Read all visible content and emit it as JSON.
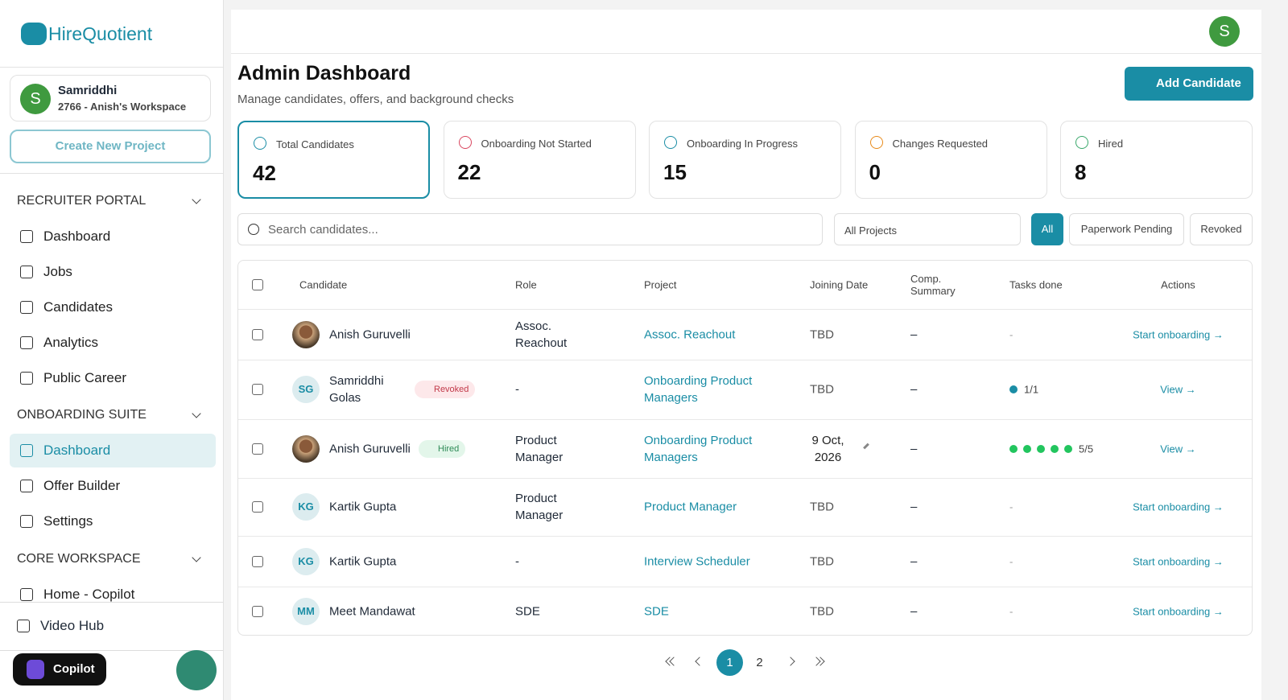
{
  "sidebar": {
    "logo": "HireQuotient",
    "user": {
      "initial": "S",
      "name": "Samriddhi",
      "workspace": "2766 - Anish's Workspace"
    },
    "create_button": "Create New Project",
    "sections": [
      {
        "title": "RECRUITER PORTAL",
        "items": [
          "Dashboard",
          "Jobs",
          "Candidates",
          "Analytics",
          "Public Career"
        ]
      },
      {
        "title": "ONBOARDING SUITE",
        "items": [
          "Dashboard",
          "Offer Builder",
          "Settings"
        ]
      },
      {
        "title": "CORE WORKSPACE",
        "items": [
          "Home - Copilot"
        ]
      }
    ],
    "footer_item": "Video Hub",
    "copilot": "Copilot"
  },
  "header": {
    "avatar": "S",
    "title": "Admin Dashboard",
    "subtitle": "Manage candidates, offers, and background checks",
    "add_button": "Add Candidate"
  },
  "stats": [
    {
      "label": "Total Candidates",
      "value": 42
    },
    {
      "label": "Onboarding Not Started",
      "value": 22
    },
    {
      "label": "Onboarding In Progress",
      "value": 15
    },
    {
      "label": "Changes Requested",
      "value": 0
    },
    {
      "label": "Hired",
      "value": 8
    }
  ],
  "search_placeholder": "Search candidates...",
  "project_filter": "All Projects",
  "filters": [
    "All",
    "Paperwork Pending",
    "Revoked"
  ],
  "table": {
    "columns": [
      "Candidate",
      "Role",
      "Project",
      "Joining Date",
      "Comp. Summary",
      "Tasks done",
      "Actions"
    ],
    "rows": [
      {
        "name": "Anish Guruvelli",
        "role": "Assoc. Reachout",
        "project": "Assoc. Reachout",
        "date": "TBD",
        "comp": "–",
        "tasks": "-",
        "action": "Start onboarding →"
      },
      {
        "initials": "SG",
        "name": "Samriddhi Golas",
        "badge": "Revoked",
        "role": "-",
        "project": "Onboarding Product Managers",
        "date": "TBD",
        "comp": "–",
        "tasks": "1/1",
        "action": "View →"
      },
      {
        "name": "Anish Guruvelli",
        "badge": "Hired",
        "role": "Product Manager",
        "project": "Onboarding Product Managers",
        "date": "9 Oct, 2026",
        "comp": "–",
        "tasks": "5/5",
        "action": "View →"
      },
      {
        "initials": "KG",
        "name": "Kartik Gupta",
        "role": "Product Manager",
        "project": "Product Manager",
        "date": "TBD",
        "comp": "–",
        "tasks": "-",
        "action": "Start onboarding →"
      },
      {
        "initials": "KG",
        "name": "Kartik Gupta",
        "role": "-",
        "project": "Interview Scheduler",
        "date": "TBD",
        "comp": "–",
        "tasks": "-",
        "action": "Start onboarding →"
      },
      {
        "initials": "MM",
        "name": "Meet Mandawat",
        "role": "SDE",
        "project": "SDE",
        "date": "TBD",
        "comp": "–",
        "tasks": "-",
        "action": "Start onboarding →"
      }
    ]
  },
  "pagination": [
    1,
    2
  ]
}
